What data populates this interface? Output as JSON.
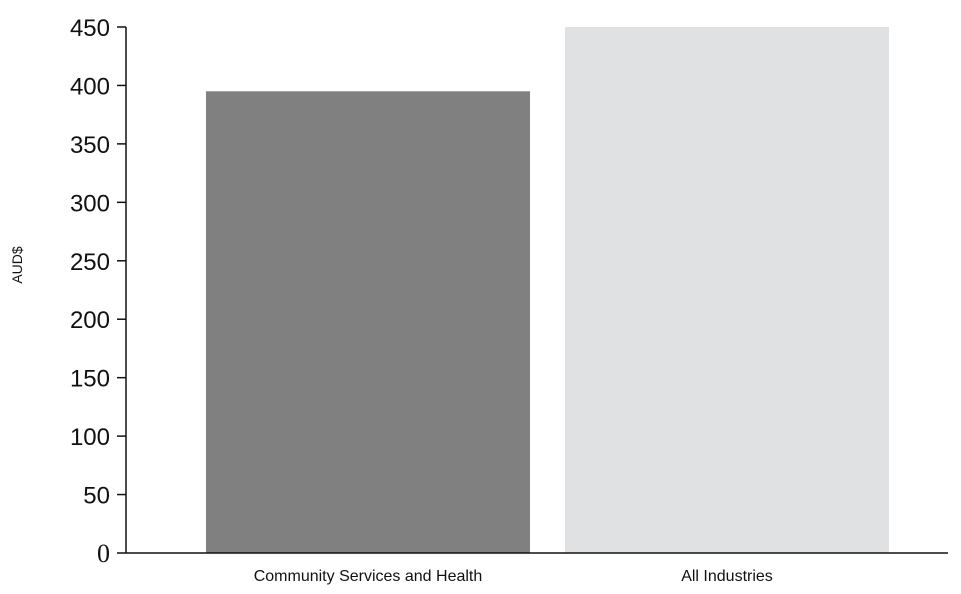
{
  "chart_data": {
    "type": "bar",
    "title": "",
    "xlabel": "",
    "ylabel": "AUD$",
    "ylim": [
      0,
      450
    ],
    "yticks": [
      0,
      50,
      100,
      150,
      200,
      250,
      300,
      350,
      400,
      450
    ],
    "categories": [
      "Community Services and Health",
      "All Industries"
    ],
    "values": [
      395,
      450
    ],
    "bar_colors": [
      "#808081",
      "#e0e1e2"
    ],
    "grid": false,
    "legend": "none"
  }
}
